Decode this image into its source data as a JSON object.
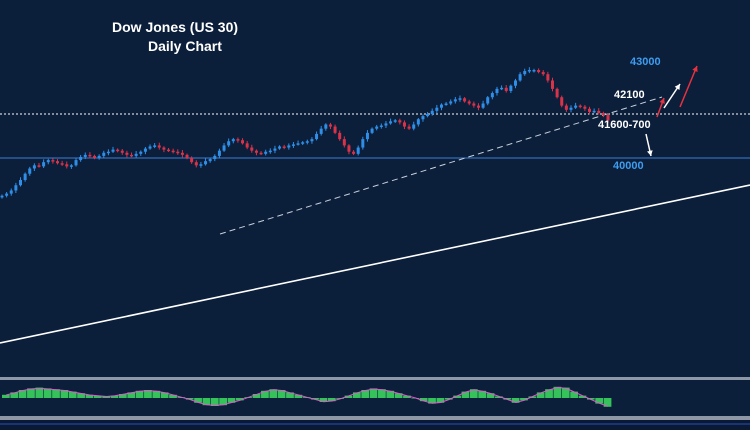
{
  "chart_data": {
    "type": "candlestick",
    "title": "Dow Jones (US 30)",
    "subtitle": "Daily Chart",
    "levels": [
      {
        "label": "43000",
        "value": 43000,
        "color": "#3d9df0"
      },
      {
        "label": "42100",
        "value": 42100,
        "color": "#ffffff"
      },
      {
        "label": "41600-700",
        "value": 41650,
        "color": "#ffffff"
      },
      {
        "label": "40000",
        "value": 40000,
        "color": "#3d9df0"
      }
    ],
    "closes": [
      38200,
      38300,
      38450,
      38700,
      38950,
      39250,
      39500,
      39650,
      39600,
      39800,
      39900,
      39850,
      39750,
      39700,
      39600,
      39650,
      39900,
      40050,
      40150,
      40100,
      40000,
      40100,
      40250,
      40300,
      40400,
      40350,
      40250,
      40150,
      40100,
      40200,
      40300,
      40450,
      40550,
      40600,
      40500,
      40400,
      40350,
      40300,
      40250,
      40150,
      40000,
      39800,
      39650,
      39700,
      39850,
      39950,
      40100,
      40350,
      40600,
      40800,
      40900,
      40850,
      40700,
      40500,
      40350,
      40250,
      40200,
      40300,
      40350,
      40450,
      40550,
      40500,
      40600,
      40650,
      40700,
      40750,
      40800,
      40900,
      41150,
      41400,
      41600,
      41500,
      41200,
      40900,
      40600,
      40300,
      40200,
      40500,
      40900,
      41200,
      41400,
      41500,
      41550,
      41650,
      41750,
      41800,
      41700,
      41500,
      41400,
      41600,
      41850,
      42000,
      42100,
      42250,
      42400,
      42550,
      42600,
      42700,
      42800,
      42850,
      42700,
      42600,
      42500,
      42400,
      42600,
      42900,
      43100,
      43300,
      43350,
      43200,
      43450,
      43700,
      44000,
      44150,
      44200,
      44200,
      44100,
      44000,
      43700,
      43300,
      42900,
      42500,
      42300,
      42400,
      42500,
      42450,
      42350,
      42200,
      42250,
      42150,
      42050,
      41800
    ],
    "indicator": {
      "type": "histogram",
      "values": [
        0.2,
        0.35,
        0.5,
        0.6,
        0.65,
        0.6,
        0.55,
        0.5,
        0.4,
        0.3,
        0.2,
        0.15,
        0.1,
        0.15,
        0.25,
        0.35,
        0.45,
        0.5,
        0.45,
        0.35,
        0.2,
        0.05,
        -0.1,
        -0.3,
        -0.45,
        -0.5,
        -0.45,
        -0.3,
        -0.15,
        0.05,
        0.25,
        0.45,
        0.55,
        0.5,
        0.35,
        0.2,
        0.05,
        -0.1,
        -0.25,
        -0.2,
        -0.05,
        0.15,
        0.35,
        0.5,
        0.6,
        0.55,
        0.45,
        0.3,
        0.15,
        0.0,
        -0.2,
        -0.35,
        -0.3,
        -0.1,
        0.15,
        0.4,
        0.55,
        0.45,
        0.3,
        0.1,
        -0.1,
        -0.3,
        -0.15,
        0.1,
        0.35,
        0.55,
        0.7,
        0.65,
        0.4,
        0.15,
        -0.1,
        -0.35,
        -0.55
      ]
    }
  }
}
